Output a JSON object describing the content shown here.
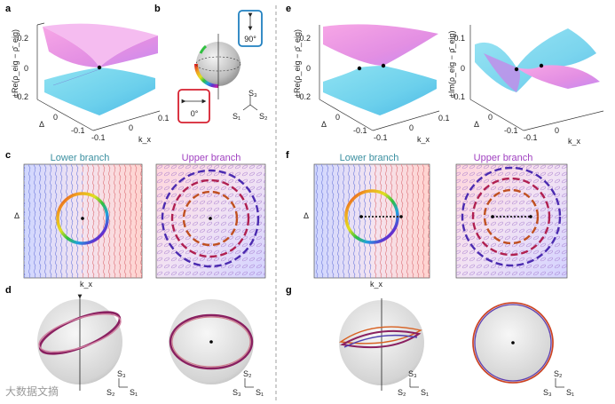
{
  "panels": {
    "a": "a",
    "b": "b",
    "c": "c",
    "d": "d",
    "e": "e",
    "f": "f",
    "g": "g"
  },
  "axes": {
    "re_ylabel": "±Re(ρ_eig − ρ̄_eig)",
    "im_ylabel": "±Im(ρ_eig − ρ̄_eig)",
    "delta": "Δ",
    "kx": "k_x",
    "ticks_a_y": [
      "0.2",
      "0",
      "-0.2"
    ],
    "ticks_delta": [
      "0",
      "-0.1"
    ],
    "ticks_kx": [
      "-0.1",
      "0",
      "0.1"
    ],
    "ticks_e2_y": [
      "0.1",
      "0",
      "-0.1"
    ]
  },
  "branches": {
    "lower": "Lower branch",
    "upper": "Upper branch"
  },
  "polarization": {
    "angle_90": "90°",
    "angle_0": "0°"
  },
  "stokes": {
    "s1": "S₁",
    "s2": "S₂",
    "s3": "S₃"
  },
  "watermark": "大数据文摘",
  "colors": {
    "lower_title": "#3a8fa0",
    "upper_title": "#a040c0",
    "red_box": "#d62030",
    "blue_box": "#2080c0"
  }
}
